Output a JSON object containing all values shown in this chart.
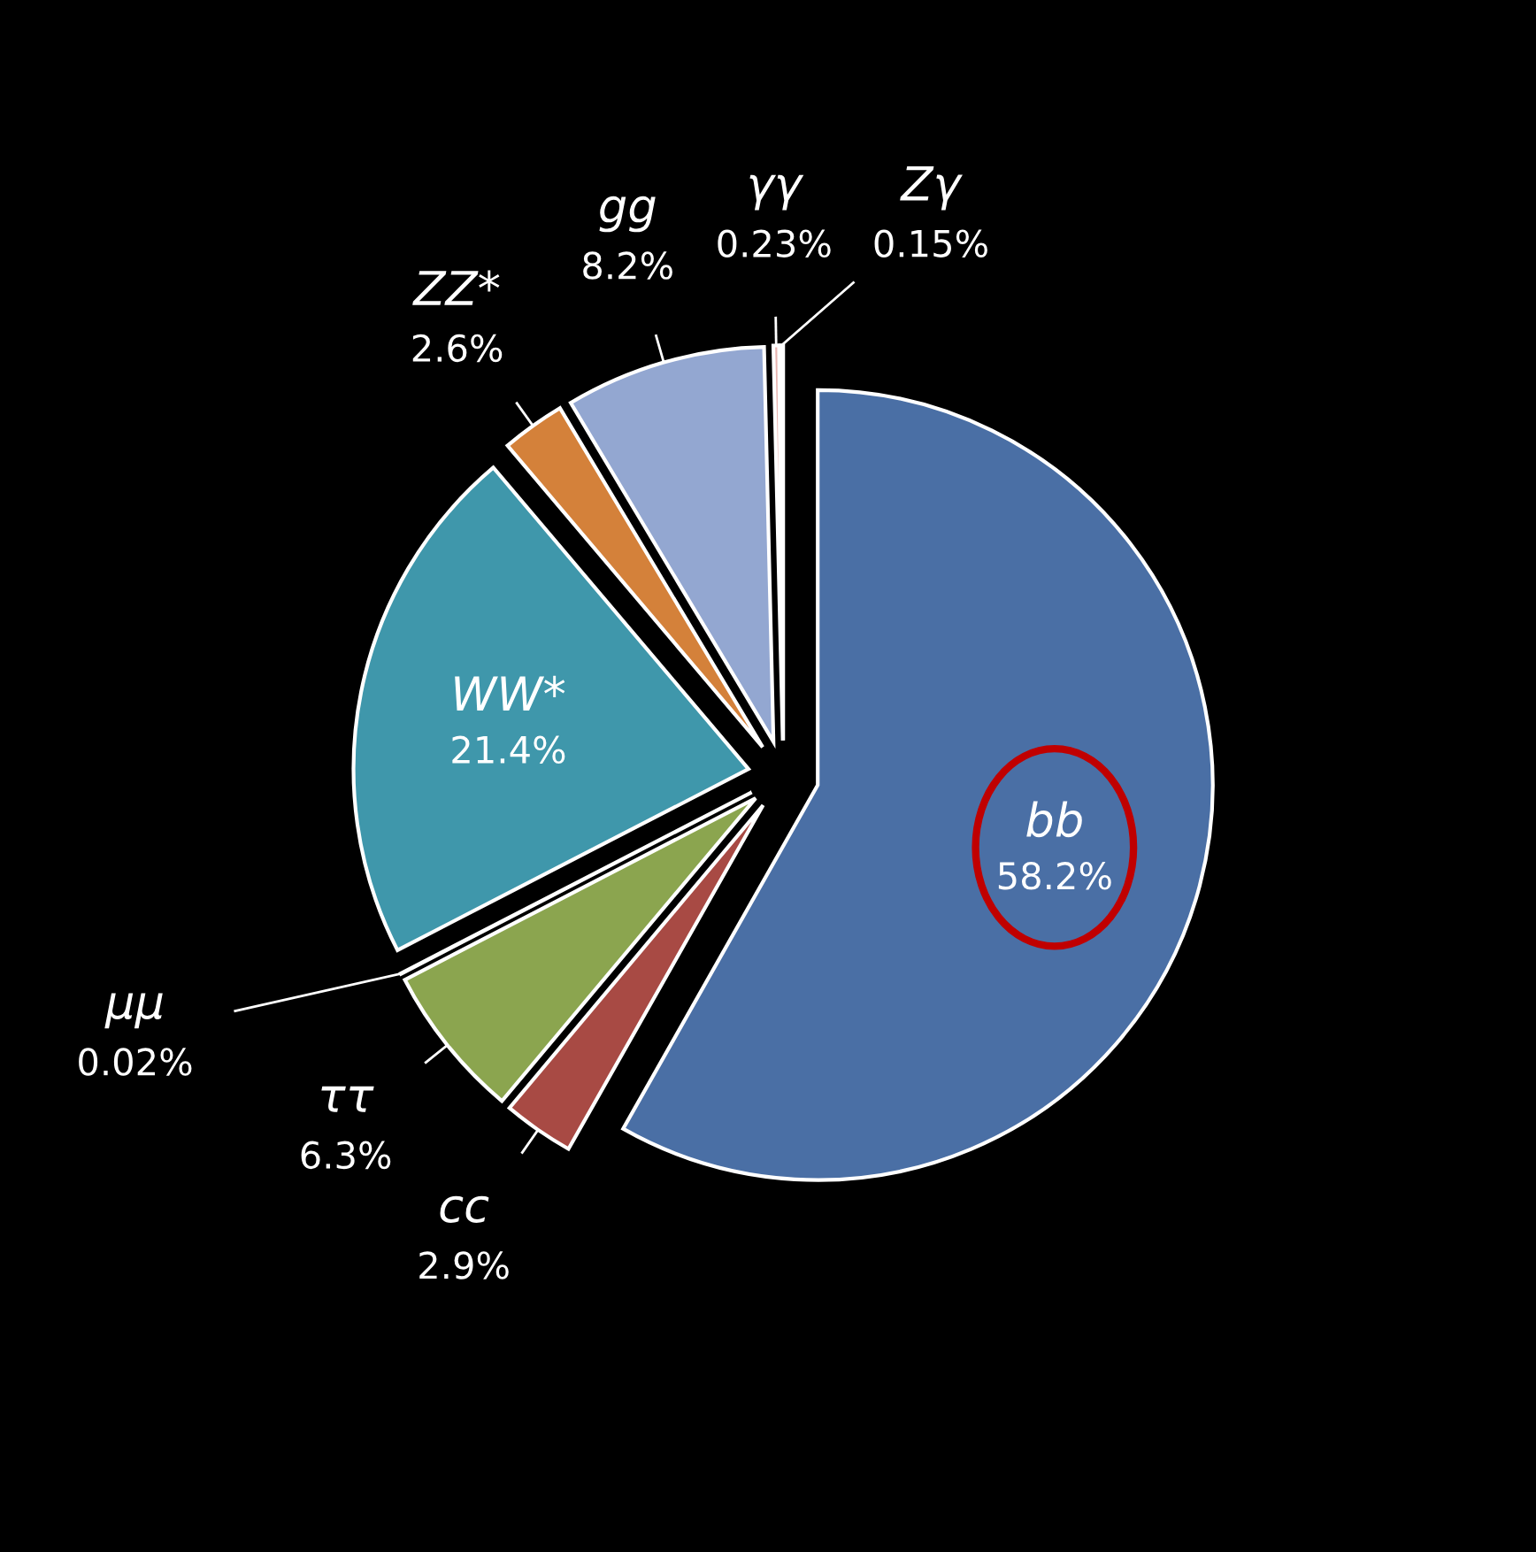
{
  "chart_data": {
    "type": "pie",
    "categories": [
      "bb",
      "cc",
      "ττ",
      "μμ",
      "WW*",
      "ZZ*",
      "gg",
      "γγ",
      "Zγ"
    ],
    "values": [
      58.2,
      2.9,
      6.3,
      0.02,
      21.4,
      2.6,
      8.2,
      0.23,
      0.15
    ],
    "value_labels": [
      "58.2%",
      "2.9%",
      "6.3%",
      "0.02%",
      "21.4%",
      "2.6%",
      "8.2%",
      "0.23%",
      "0.15%"
    ],
    "colors": [
      "#4a6fa5",
      "#a84a44",
      "#8ba54f",
      "#29a8e0",
      "#3f97ab",
      "#d4813a",
      "#93a7d1",
      "#e8b4b0",
      "#2aa055"
    ]
  }
}
